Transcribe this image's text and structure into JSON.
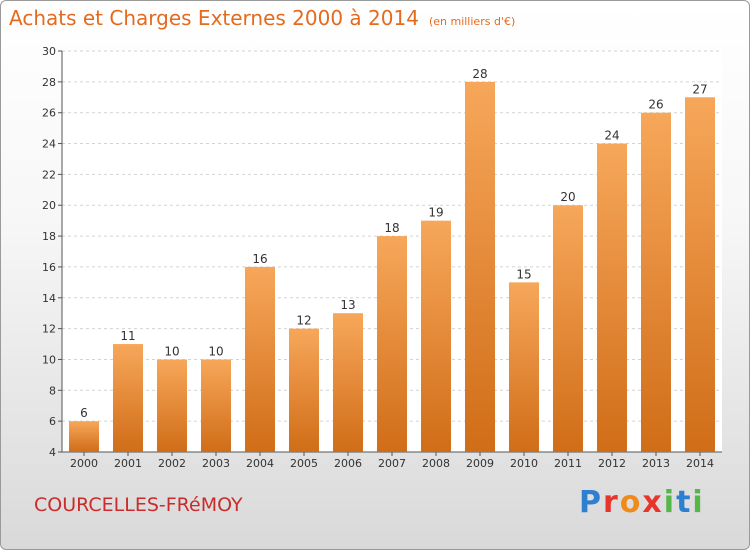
{
  "header": {
    "title": "Achats et Charges Externes 2000 à 2014",
    "subtitle": "(en milliers d'€)"
  },
  "footer": {
    "city": "COURCELLES-FRéMOY",
    "brand": [
      "P",
      "r",
      "o",
      "x",
      "i",
      "t",
      "i"
    ]
  },
  "colors": {
    "bar_light": "#f7a75a",
    "bar_dark": "#d06d18",
    "title": "#e46b1e",
    "city": "#cc2b2b"
  },
  "chart_data": {
    "type": "bar",
    "title": "Achats et Charges Externes 2000 à 2014",
    "subtitle": "(en milliers d'€)",
    "categories": [
      "2000",
      "2001",
      "2002",
      "2003",
      "2004",
      "2005",
      "2006",
      "2007",
      "2008",
      "2009",
      "2010",
      "2011",
      "2012",
      "2013",
      "2014"
    ],
    "values": [
      6,
      11,
      10,
      10,
      16,
      12,
      13,
      18,
      19,
      28,
      15,
      20,
      24,
      26,
      27
    ],
    "ylim": [
      4,
      30
    ],
    "yticks": [
      4,
      6,
      8,
      10,
      12,
      14,
      16,
      18,
      20,
      22,
      24,
      26,
      28,
      30
    ],
    "grid": true,
    "legend": "none"
  }
}
